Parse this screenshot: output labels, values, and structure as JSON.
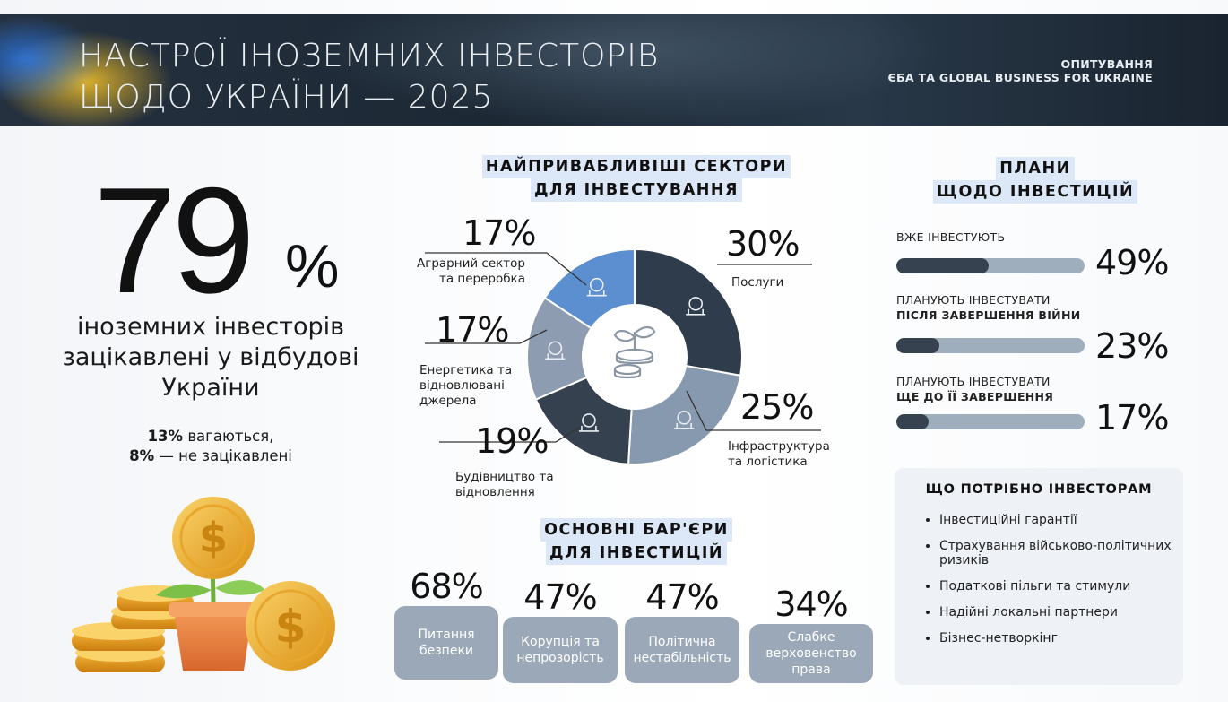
{
  "header": {
    "title_line1": "НАСТРОЇ ІНОЗЕМНИХ ІНВЕСТОРІВ",
    "title_line2": "ЩОДО УКРАЇНИ — 2025",
    "survey_line1": "ОПИТУВАННЯ",
    "survey_line2": "ЄБА ТА GLOBAL BUSINESS FOR UKRAINE"
  },
  "headline": {
    "value": "79",
    "unit": "%",
    "line1": "іноземних інвесторів",
    "line2": "зацікавлені у відбудові",
    "line3": "України",
    "hesitant_pct": "13%",
    "hesitant_text": " вагаються,",
    "not_interested_pct": "8%",
    "not_interested_text": " — не зацікавлені"
  },
  "sectors": {
    "heading_line1": "НАЙПРИВАБЛИВІШІ СЕКТОРИ",
    "heading_line2": "ДЛЯ ІНВЕСТУВАННЯ",
    "items": [
      {
        "pct": "30%",
        "label_line1": "Послуги",
        "label_line2": "",
        "label_line3": ""
      },
      {
        "pct": "25%",
        "label_line1": "Інфраструктура",
        "label_line2": "та логістика",
        "label_line3": ""
      },
      {
        "pct": "19%",
        "label_line1": "Будівництво та",
        "label_line2": "відновлення",
        "label_line3": ""
      },
      {
        "pct": "17%",
        "label_line1": "Енергетика та",
        "label_line2": "відновлювані",
        "label_line3": "джерела"
      },
      {
        "pct": "17%",
        "label_line1": "Аграрний сектор",
        "label_line2": "та переробка",
        "label_line3": ""
      }
    ]
  },
  "chart_data": {
    "type": "pie",
    "categories": [
      "Послуги",
      "Інфраструктура та логістика",
      "Будівництво та відновлення",
      "Енергетика та відновлювані джерела",
      "Аграрний сектор та переробка"
    ],
    "values": [
      30,
      25,
      19,
      17,
      17
    ],
    "colors": [
      "#2f3c4b",
      "#8799ae",
      "#35414f",
      "#8d9cb0",
      "#5b8fcf"
    ],
    "icons": [
      "gears-hand-icon",
      "crane-truck-icon",
      "construction-crane-icon",
      "renewable-energy-icon",
      "farm-icon"
    ],
    "center_icon": "sprout-coins-icon",
    "title": "НАЙПРИВАБЛИВІШІ СЕКТОРИ ДЛЯ ІНВЕСТУВАННЯ"
  },
  "barriers": {
    "heading_line1": "ОСНОВНІ БАР'ЄРИ",
    "heading_line2": "ДЛЯ ІНВЕСТИЦІЙ",
    "items": [
      {
        "pct": "68%",
        "line1": "Питання",
        "line2": "безпеки",
        "line3": ""
      },
      {
        "pct": "47%",
        "line1": "Корупція та",
        "line2": "непрозорість",
        "line3": ""
      },
      {
        "pct": "47%",
        "line1": "Політична",
        "line2": "нестабільність",
        "line3": ""
      },
      {
        "pct": "34%",
        "line1": "Слабке",
        "line2": "верховенство",
        "line3": "права"
      }
    ]
  },
  "plans": {
    "heading_line1": "ПЛАНИ",
    "heading_line2": "ЩОДО ІНВЕСТИЦІЙ",
    "items": [
      {
        "label_line1": "ВЖЕ ІНВЕСТУЮТЬ",
        "label_line2": "",
        "pct": "49%",
        "value": 49
      },
      {
        "label_line1": "ПЛАНУЮТЬ ІНВЕСТУВАТИ",
        "label_line2": "ПІСЛЯ ЗАВЕРШЕННЯ ВІЙНИ",
        "pct": "23%",
        "value": 23
      },
      {
        "label_line1": "ПЛАНУЮТЬ ІНВЕСТУВАТИ",
        "label_line2": "ЩЕ ДО ЇЇ ЗАВЕРШЕННЯ",
        "pct": "17%",
        "value": 17
      }
    ]
  },
  "needs": {
    "title": "ЩО ПОТРІБНО ІНВЕСТОРАМ",
    "items": [
      "Інвестиційні гарантії",
      "Страхування військово-політичних ризиків",
      "Податкові пільги та стимули",
      "Надійні локальні партнери",
      "Бізнес-нетворкінг"
    ]
  },
  "colors": {
    "header_bg": "#1f2b38",
    "dark_slate": "#35414f",
    "mid_slate": "#8d9cb0",
    "accent_blue": "#5b8fcf",
    "barrier_box": "#9ba8b8",
    "heading_highlight": "#dce8f7"
  }
}
